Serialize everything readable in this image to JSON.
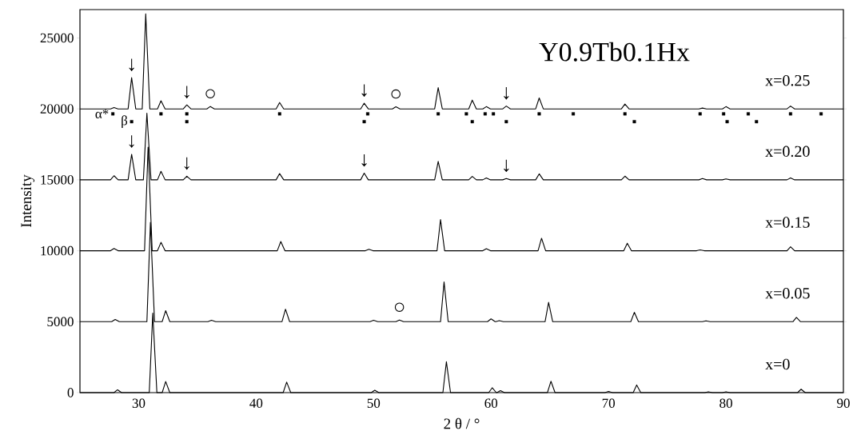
{
  "chart_data": {
    "type": "line",
    "title": "Y0.9Tb0.1Hx",
    "xlabel": "2 θ / °",
    "ylabel": "Intensity",
    "xlim": [
      25,
      90
    ],
    "ylim": [
      0,
      27000
    ],
    "xticks": [
      30,
      40,
      50,
      60,
      70,
      80,
      90
    ],
    "yticks": [
      0,
      5000,
      10000,
      15000,
      20000,
      25000
    ],
    "series": [
      {
        "name": "x=0.25",
        "color": "#000000",
        "x": [
          25,
          27.6,
          27.9,
          28.25,
          29.1,
          29.4,
          29.75,
          30.3,
          30.6,
          30.95,
          31.6,
          31.9,
          32.25,
          33.8,
          34.1,
          34.45,
          35.8,
          36.1,
          36.45,
          41.7,
          42.0,
          42.35,
          48.9,
          49.2,
          49.55,
          51.6,
          51.9,
          52.25,
          55.2,
          55.5,
          55.85,
          58.1,
          58.4,
          58.75,
          59.3,
          59.6,
          59.95,
          61.0,
          61.3,
          61.65,
          63.8,
          64.1,
          64.45,
          71.1,
          71.4,
          71.75,
          77.7,
          78.0,
          78.35,
          79.7,
          80.0,
          80.35,
          85.2,
          85.5,
          85.85,
          90
        ],
        "values": [
          20000,
          20000,
          20100,
          20000,
          20000,
          22200,
          20000,
          20000,
          26700,
          20000,
          20000,
          20570,
          20000,
          20000,
          20280,
          20000,
          20000,
          20170,
          20000,
          20000,
          20450,
          20000,
          20000,
          20400,
          20000,
          20000,
          20150,
          20000,
          20000,
          21500,
          20000,
          20000,
          20620,
          20000,
          20000,
          20160,
          20000,
          20000,
          20200,
          20000,
          20000,
          20770,
          20000,
          20000,
          20340,
          20000,
          20000,
          20060,
          20000,
          20000,
          20160,
          20000,
          20000,
          20200,
          20000,
          20000
        ]
      },
      {
        "name": "x=0.20",
        "color": "#000000",
        "x": [
          25,
          27.6,
          27.9,
          28.25,
          29.1,
          29.4,
          29.75,
          30.4,
          30.7,
          31.05,
          31.6,
          31.9,
          32.25,
          33.8,
          34.1,
          34.45,
          41.7,
          42.0,
          42.35,
          48.9,
          49.2,
          49.55,
          55.2,
          55.5,
          55.85,
          58.1,
          58.4,
          58.75,
          59.3,
          59.6,
          59.95,
          61.0,
          61.3,
          61.65,
          63.8,
          64.1,
          64.45,
          71.1,
          71.4,
          71.75,
          77.7,
          78.0,
          78.35,
          79.7,
          80.0,
          80.35,
          85.2,
          85.5,
          85.85,
          90
        ],
        "values": [
          15000,
          15000,
          15290,
          15000,
          15000,
          16800,
          15000,
          15000,
          19700,
          15000,
          15000,
          15600,
          15000,
          15000,
          15250,
          15000,
          15000,
          15440,
          15000,
          15000,
          15470,
          15000,
          15000,
          16300,
          15000,
          15000,
          15240,
          15000,
          15000,
          15130,
          15000,
          15000,
          15090,
          15000,
          15000,
          15420,
          15000,
          15000,
          15260,
          15000,
          15000,
          15090,
          15000,
          15000,
          15060,
          15000,
          15000,
          15140,
          15000,
          15000
        ]
      },
      {
        "name": "x=0.15",
        "color": "#000000",
        "x": [
          25,
          27.6,
          27.9,
          28.25,
          30.5,
          30.8,
          31.15,
          31.6,
          31.9,
          32.25,
          41.8,
          42.1,
          42.45,
          49.3,
          49.6,
          49.95,
          55.4,
          55.7,
          56.05,
          59.3,
          59.6,
          59.95,
          64.0,
          64.3,
          64.65,
          71.3,
          71.6,
          71.95,
          77.5,
          77.8,
          78.15,
          85.2,
          85.5,
          85.85,
          90
        ],
        "values": [
          10000,
          10000,
          10160,
          10000,
          10000,
          17300,
          10000,
          10000,
          10590,
          10000,
          10000,
          10650,
          10000,
          10000,
          10100,
          10000,
          10000,
          12200,
          10000,
          10000,
          10140,
          10000,
          10000,
          10880,
          10000,
          10000,
          10530,
          10000,
          10000,
          10060,
          10000,
          10000,
          10280,
          10000,
          10000
        ]
      },
      {
        "name": "x=0.05",
        "color": "#000000",
        "x": [
          25,
          27.7,
          28.0,
          28.35,
          30.7,
          31.0,
          31.35,
          32.0,
          32.3,
          32.65,
          35.9,
          36.2,
          36.55,
          42.2,
          42.5,
          42.85,
          49.7,
          50.0,
          50.35,
          51.9,
          52.2,
          52.55,
          55.7,
          56.0,
          56.35,
          59.7,
          60.0,
          60.35,
          60.4,
          60.7,
          61.05,
          64.6,
          64.9,
          65.25,
          71.9,
          72.2,
          72.55,
          78.0,
          78.3,
          78.65,
          85.7,
          86.0,
          86.35,
          90
        ],
        "values": [
          5000,
          5000,
          5160,
          5000,
          5000,
          12000,
          5000,
          5000,
          5780,
          5000,
          5000,
          5100,
          5000,
          5000,
          5880,
          5000,
          5000,
          5100,
          5000,
          5000,
          5120,
          5000,
          5000,
          7800,
          5000,
          5000,
          5200,
          5000,
          5000,
          5070,
          5000,
          5000,
          6360,
          5000,
          5000,
          5660,
          5000,
          5000,
          5060,
          5000,
          5000,
          5300,
          5000,
          5000
        ]
      },
      {
        "name": "x=0",
        "color": "#000000",
        "x": [
          25,
          27.9,
          28.2,
          28.55,
          30.9,
          31.2,
          31.55,
          32.0,
          32.3,
          32.65,
          42.3,
          42.6,
          42.95,
          49.8,
          50.1,
          50.45,
          55.9,
          56.2,
          56.55,
          59.8,
          60.1,
          60.45,
          60.5,
          60.8,
          61.15,
          64.8,
          65.1,
          65.45,
          69.7,
          70.0,
          70.35,
          72.1,
          72.4,
          72.75,
          78.2,
          78.5,
          78.85,
          79.7,
          80.0,
          80.35,
          86.1,
          86.4,
          86.75,
          90
        ],
        "values": [
          0,
          0,
          200,
          0,
          0,
          5600,
          0,
          0,
          780,
          0,
          0,
          740,
          0,
          0,
          170,
          0,
          0,
          2180,
          0,
          0,
          340,
          0,
          0,
          140,
          0,
          0,
          800,
          0,
          0,
          80,
          0,
          0,
          540,
          0,
          0,
          60,
          0,
          0,
          60,
          0,
          0,
          240,
          0,
          0
        ]
      },
      {
        "name": "α*",
        "type": "scatter",
        "marker": "square",
        "color": "#000000",
        "x": [
          27.8,
          31.9,
          34.1,
          42.0,
          49.5,
          55.5,
          57.9,
          59.5,
          60.2,
          64.1,
          67.0,
          71.4,
          77.8,
          79.8,
          81.9,
          85.5,
          88.1
        ],
        "values": [
          19650,
          19650,
          19650,
          19650,
          19650,
          19650,
          19650,
          19650,
          19650,
          19650,
          19650,
          19650,
          19650,
          19650,
          19650,
          19650,
          19650
        ]
      },
      {
        "name": "β",
        "type": "scatter",
        "marker": "square",
        "color": "#000000",
        "x": [
          29.4,
          34.1,
          49.2,
          58.4,
          61.3,
          72.2,
          80.1,
          82.6
        ],
        "values": [
          19100,
          19100,
          19100,
          19100,
          19100,
          19100,
          19100,
          19100
        ]
      }
    ],
    "annotations": [
      {
        "text": "↓",
        "x": 29.4,
        "y": 22200
      },
      {
        "text": "↓",
        "x": 34.1,
        "y": 20280
      },
      {
        "text": "↓",
        "x": 49.2,
        "y": 20400
      },
      {
        "text": "↓",
        "x": 61.3,
        "y": 20200
      },
      {
        "text": "↓",
        "x": 29.4,
        "y": 16800
      },
      {
        "text": "↓",
        "x": 34.1,
        "y": 15250
      },
      {
        "text": "↓",
        "x": 49.2,
        "y": 15470
      },
      {
        "text": "↓",
        "x": 61.3,
        "y": 15090
      },
      {
        "text": "○",
        "x": 36.1,
        "y": 20170
      },
      {
        "text": "○",
        "x": 51.9,
        "y": 20150
      },
      {
        "text": "○",
        "x": 52.2,
        "y": 5120
      }
    ]
  }
}
